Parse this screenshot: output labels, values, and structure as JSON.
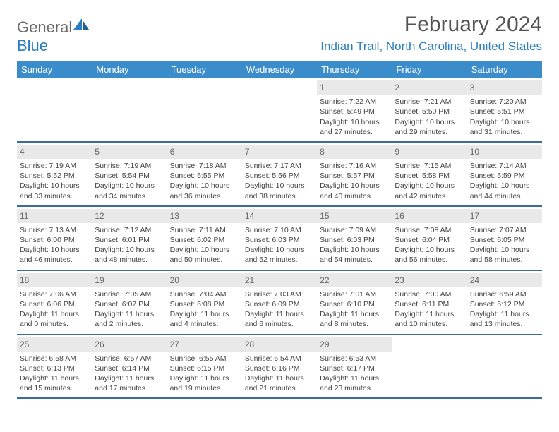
{
  "logo": {
    "text_a": "General",
    "text_b": "Blue"
  },
  "title": "February 2024",
  "location": "Indian Trail, North Carolina, United States",
  "colors": {
    "header_bg": "#3a8dca",
    "header_text": "#ffffff",
    "week_border": "#3a6d95",
    "daynum_bg": "#e9e9e9",
    "logo_gray": "#6b6b6b",
    "logo_blue": "#2b7fbf"
  },
  "day_names": [
    "Sunday",
    "Monday",
    "Tuesday",
    "Wednesday",
    "Thursday",
    "Friday",
    "Saturday"
  ],
  "weeks": [
    [
      {
        "empty": true
      },
      {
        "empty": true
      },
      {
        "empty": true
      },
      {
        "empty": true
      },
      {
        "day": "1",
        "sunrise": "Sunrise: 7:22 AM",
        "sunset": "Sunset: 5:49 PM",
        "d1": "Daylight: 10 hours",
        "d2": "and 27 minutes."
      },
      {
        "day": "2",
        "sunrise": "Sunrise: 7:21 AM",
        "sunset": "Sunset: 5:50 PM",
        "d1": "Daylight: 10 hours",
        "d2": "and 29 minutes."
      },
      {
        "day": "3",
        "sunrise": "Sunrise: 7:20 AM",
        "sunset": "Sunset: 5:51 PM",
        "d1": "Daylight: 10 hours",
        "d2": "and 31 minutes."
      }
    ],
    [
      {
        "day": "4",
        "sunrise": "Sunrise: 7:19 AM",
        "sunset": "Sunset: 5:52 PM",
        "d1": "Daylight: 10 hours",
        "d2": "and 33 minutes."
      },
      {
        "day": "5",
        "sunrise": "Sunrise: 7:19 AM",
        "sunset": "Sunset: 5:54 PM",
        "d1": "Daylight: 10 hours",
        "d2": "and 34 minutes."
      },
      {
        "day": "6",
        "sunrise": "Sunrise: 7:18 AM",
        "sunset": "Sunset: 5:55 PM",
        "d1": "Daylight: 10 hours",
        "d2": "and 36 minutes."
      },
      {
        "day": "7",
        "sunrise": "Sunrise: 7:17 AM",
        "sunset": "Sunset: 5:56 PM",
        "d1": "Daylight: 10 hours",
        "d2": "and 38 minutes."
      },
      {
        "day": "8",
        "sunrise": "Sunrise: 7:16 AM",
        "sunset": "Sunset: 5:57 PM",
        "d1": "Daylight: 10 hours",
        "d2": "and 40 minutes."
      },
      {
        "day": "9",
        "sunrise": "Sunrise: 7:15 AM",
        "sunset": "Sunset: 5:58 PM",
        "d1": "Daylight: 10 hours",
        "d2": "and 42 minutes."
      },
      {
        "day": "10",
        "sunrise": "Sunrise: 7:14 AM",
        "sunset": "Sunset: 5:59 PM",
        "d1": "Daylight: 10 hours",
        "d2": "and 44 minutes."
      }
    ],
    [
      {
        "day": "11",
        "sunrise": "Sunrise: 7:13 AM",
        "sunset": "Sunset: 6:00 PM",
        "d1": "Daylight: 10 hours",
        "d2": "and 46 minutes."
      },
      {
        "day": "12",
        "sunrise": "Sunrise: 7:12 AM",
        "sunset": "Sunset: 6:01 PM",
        "d1": "Daylight: 10 hours",
        "d2": "and 48 minutes."
      },
      {
        "day": "13",
        "sunrise": "Sunrise: 7:11 AM",
        "sunset": "Sunset: 6:02 PM",
        "d1": "Daylight: 10 hours",
        "d2": "and 50 minutes."
      },
      {
        "day": "14",
        "sunrise": "Sunrise: 7:10 AM",
        "sunset": "Sunset: 6:03 PM",
        "d1": "Daylight: 10 hours",
        "d2": "and 52 minutes."
      },
      {
        "day": "15",
        "sunrise": "Sunrise: 7:09 AM",
        "sunset": "Sunset: 6:03 PM",
        "d1": "Daylight: 10 hours",
        "d2": "and 54 minutes."
      },
      {
        "day": "16",
        "sunrise": "Sunrise: 7:08 AM",
        "sunset": "Sunset: 6:04 PM",
        "d1": "Daylight: 10 hours",
        "d2": "and 56 minutes."
      },
      {
        "day": "17",
        "sunrise": "Sunrise: 7:07 AM",
        "sunset": "Sunset: 6:05 PM",
        "d1": "Daylight: 10 hours",
        "d2": "and 58 minutes."
      }
    ],
    [
      {
        "day": "18",
        "sunrise": "Sunrise: 7:06 AM",
        "sunset": "Sunset: 6:06 PM",
        "d1": "Daylight: 11 hours",
        "d2": "and 0 minutes."
      },
      {
        "day": "19",
        "sunrise": "Sunrise: 7:05 AM",
        "sunset": "Sunset: 6:07 PM",
        "d1": "Daylight: 11 hours",
        "d2": "and 2 minutes."
      },
      {
        "day": "20",
        "sunrise": "Sunrise: 7:04 AM",
        "sunset": "Sunset: 6:08 PM",
        "d1": "Daylight: 11 hours",
        "d2": "and 4 minutes."
      },
      {
        "day": "21",
        "sunrise": "Sunrise: 7:03 AM",
        "sunset": "Sunset: 6:09 PM",
        "d1": "Daylight: 11 hours",
        "d2": "and 6 minutes."
      },
      {
        "day": "22",
        "sunrise": "Sunrise: 7:01 AM",
        "sunset": "Sunset: 6:10 PM",
        "d1": "Daylight: 11 hours",
        "d2": "and 8 minutes."
      },
      {
        "day": "23",
        "sunrise": "Sunrise: 7:00 AM",
        "sunset": "Sunset: 6:11 PM",
        "d1": "Daylight: 11 hours",
        "d2": "and 10 minutes."
      },
      {
        "day": "24",
        "sunrise": "Sunrise: 6:59 AM",
        "sunset": "Sunset: 6:12 PM",
        "d1": "Daylight: 11 hours",
        "d2": "and 13 minutes."
      }
    ],
    [
      {
        "day": "25",
        "sunrise": "Sunrise: 6:58 AM",
        "sunset": "Sunset: 6:13 PM",
        "d1": "Daylight: 11 hours",
        "d2": "and 15 minutes."
      },
      {
        "day": "26",
        "sunrise": "Sunrise: 6:57 AM",
        "sunset": "Sunset: 6:14 PM",
        "d1": "Daylight: 11 hours",
        "d2": "and 17 minutes."
      },
      {
        "day": "27",
        "sunrise": "Sunrise: 6:55 AM",
        "sunset": "Sunset: 6:15 PM",
        "d1": "Daylight: 11 hours",
        "d2": "and 19 minutes."
      },
      {
        "day": "28",
        "sunrise": "Sunrise: 6:54 AM",
        "sunset": "Sunset: 6:16 PM",
        "d1": "Daylight: 11 hours",
        "d2": "and 21 minutes."
      },
      {
        "day": "29",
        "sunrise": "Sunrise: 6:53 AM",
        "sunset": "Sunset: 6:17 PM",
        "d1": "Daylight: 11 hours",
        "d2": "and 23 minutes."
      },
      {
        "empty": true
      },
      {
        "empty": true
      }
    ]
  ]
}
